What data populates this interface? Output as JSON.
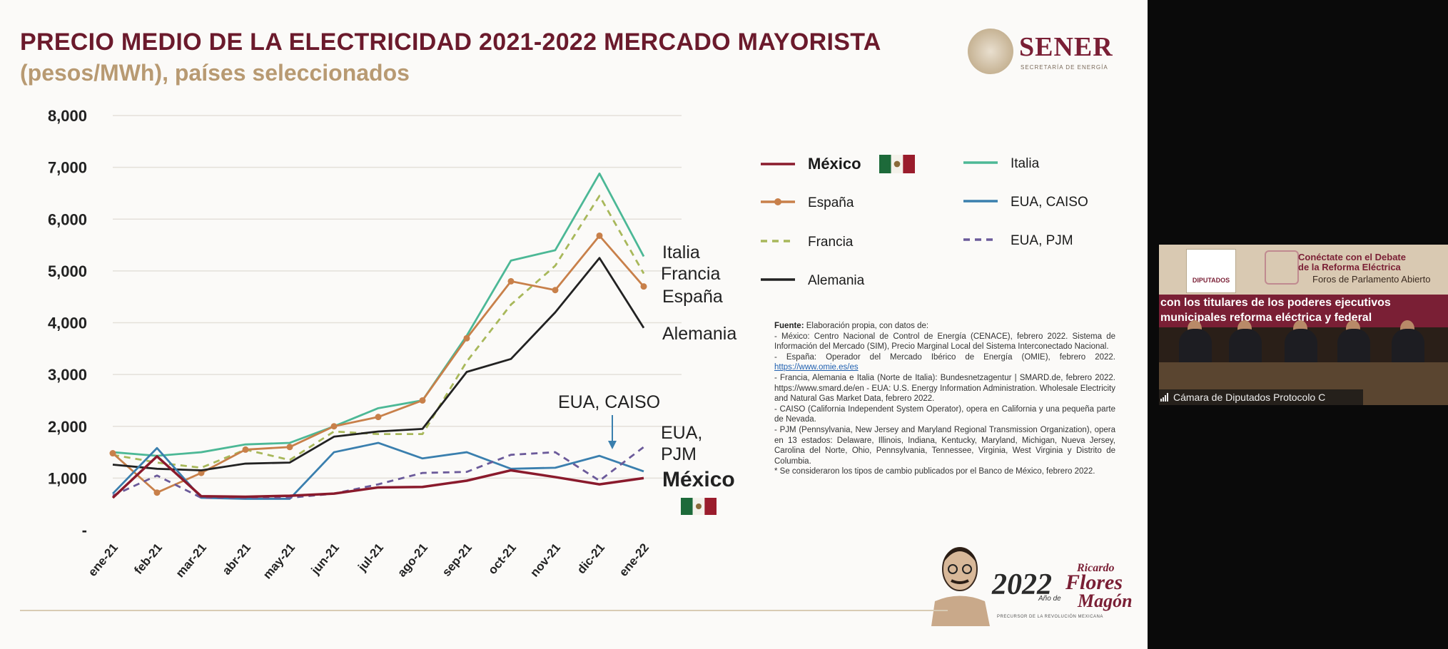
{
  "slide": {
    "title_line1": "PRECIO MEDIO DE LA ELECTRICIDAD 2021-2022 MERCADO MAYORISTA",
    "title_line2": "(pesos/MWh), países seleccionados",
    "logo_text": "SENER",
    "logo_sub": "SECRETARÍA DE ENERGÍA"
  },
  "chart_data": {
    "type": "line",
    "title": "PRECIO MEDIO DE LA ELECTRICIDAD 2021-2022 MERCADO MAYORISTA",
    "ylabel": "(pesos/MWh)",
    "ylim": [
      0,
      8000
    ],
    "y_ticks": [
      "8,000",
      "7,000",
      "6,000",
      "5,000",
      "4,000",
      "3,000",
      "2,000",
      "1,000",
      "-"
    ],
    "y_tick_values": [
      8000,
      7000,
      6000,
      5000,
      4000,
      3000,
      2000,
      1000,
      0
    ],
    "categories": [
      "ene-21",
      "feb-21",
      "mar-21",
      "abr-21",
      "may-21",
      "jun-21",
      "jul-21",
      "ago-21",
      "sep-21",
      "oct-21",
      "nov-21",
      "dic-21",
      "ene-22"
    ],
    "grid": true,
    "legend_position": "right",
    "series": [
      {
        "name": "Italia",
        "color": "#4cb896",
        "dash": false,
        "marker": false,
        "values": [
          1500,
          1430,
          1500,
          1650,
          1680,
          2000,
          2350,
          2500,
          3750,
          5200,
          5400,
          6880,
          5280
        ]
      },
      {
        "name": "Francia",
        "color": "#a8b85a",
        "dash": true,
        "marker": false,
        "values": [
          1450,
          1300,
          1200,
          1550,
          1350,
          1900,
          1850,
          1850,
          3250,
          4350,
          5100,
          6450,
          4950
        ]
      },
      {
        "name": "España",
        "color": "#c8804a",
        "dash": false,
        "marker": true,
        "values": [
          1480,
          720,
          1100,
          1550,
          1600,
          2000,
          2180,
          2500,
          3700,
          4800,
          4630,
          5680,
          4700
        ]
      },
      {
        "name": "Alemania",
        "color": "#222222",
        "dash": false,
        "marker": false,
        "values": [
          1260,
          1180,
          1150,
          1280,
          1300,
          1800,
          1900,
          1950,
          3050,
          3300,
          4200,
          5250,
          3900
        ]
      },
      {
        "name": "EUA, CAISO",
        "color": "#3a7fae",
        "dash": false,
        "marker": false,
        "values": [
          700,
          1580,
          620,
          600,
          600,
          1500,
          1680,
          1380,
          1500,
          1180,
          1200,
          1430,
          1130
        ]
      },
      {
        "name": "EUA, PJM",
        "color": "#6b5a9a",
        "dash": true,
        "marker": false,
        "values": [
          660,
          1050,
          620,
          620,
          620,
          700,
          880,
          1100,
          1120,
          1450,
          1500,
          950,
          1600
        ]
      },
      {
        "name": "México",
        "color": "#8a1a2c",
        "dash": false,
        "marker": false,
        "values": [
          620,
          1420,
          650,
          640,
          660,
          700,
          820,
          830,
          950,
          1150,
          1020,
          880,
          1000
        ]
      }
    ],
    "end_labels": [
      "Italia",
      "Francia",
      "España",
      "Alemania",
      "EUA, CAISO",
      "EUA,",
      "PJM",
      "México"
    ]
  },
  "legend": {
    "items": [
      "México",
      "Italia",
      "España",
      "EUA, CAISO",
      "Francia",
      "EUA, PJM",
      "Alemania"
    ]
  },
  "source": {
    "heading": "Fuente:",
    "intro": " Elaboración propia, con datos de:",
    "lines": [
      "- México: Centro Nacional de Control de Energía (CENACE), febrero 2022. Sistema de Información del Mercado (SIM), Precio Marginal Local del Sistema Interconectado Nacional.",
      "- España: Operador del Mercado Ibérico de Energía (OMIE), febrero 2022.",
      "- Francia, Alemania e Italia (Norte de Italia): Bundesnetzagentur | SMARD.de, febrero 2022. https://www.smard.de/en - EUA: U.S. Energy Information Administration. Wholesale Electricity and Natural Gas Market Data, febrero 2022.",
      "- CAISO (California Independent System Operator), opera en California y una pequeña parte de Nevada.",
      "- PJM (Pennsylvania, New Jersey and Maryland Regional Transmission Organization), opera en 13 estados: Delaware, Illinois, Indiana, Kentucky, Maryland, Michigan, Nueva Jersey, Carolina del Norte, Ohio, Pennsylvania, Tennessee, Virginia, West Virginia y Distrito de Columbia.",
      "* Se consideraron los tipos de cambio publicados por el Banco de México, febrero 2022."
    ],
    "omie_link": "https://www.omie.es/es"
  },
  "banner": {
    "year": "2022",
    "ano": "Año de",
    "name1": "Ricardo",
    "name2": "Flores",
    "name3": "Magón",
    "sub": "PRECURSOR DE LA REVOLUCIÓN MEXICANA"
  },
  "video": {
    "logo_text": "DIPUTADOS",
    "head1": "Conéctate con el Debate",
    "head2": "de la Reforma Eléctrica",
    "head3": "Foros de Parlamento Abierto",
    "band1": "con los titulares de los poderes ejecutivos",
    "band2": "municipales reforma eléctrica y federal",
    "caption": "Cámara de Diputados Protocolo C"
  },
  "colors": {
    "title": "#6b1a2c",
    "subtitle": "#b89a72",
    "brand": "#7a1f35"
  }
}
